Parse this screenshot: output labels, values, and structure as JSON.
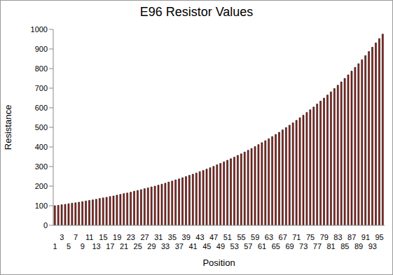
{
  "chart_data": {
    "type": "bar",
    "title": "E96 Resistor Values",
    "x_label": "Position",
    "y_label": "Resistance",
    "categories": [
      "1",
      null,
      "3",
      null,
      "5",
      null,
      "7",
      null,
      "9",
      null,
      "11",
      null,
      "13",
      null,
      "15",
      null,
      "17",
      null,
      "19",
      null,
      "21",
      null,
      "23",
      null,
      "25",
      null,
      "27",
      null,
      "29",
      null,
      "31",
      null,
      "33",
      null,
      "35",
      null,
      "37",
      null,
      "39",
      null,
      "41",
      null,
      "43",
      null,
      "45",
      null,
      "47",
      null,
      "49",
      null,
      "51",
      null,
      "53",
      null,
      "55",
      null,
      "57",
      null,
      "59",
      null,
      "61",
      null,
      "63",
      null,
      "65",
      null,
      "67",
      null,
      "69",
      null,
      "71",
      null,
      "73",
      null,
      "75",
      null,
      "77",
      null,
      "79",
      null,
      "81",
      null,
      "83",
      null,
      "85",
      null,
      "87",
      null,
      "89",
      null,
      "91",
      null,
      "93",
      null,
      "95",
      null
    ],
    "values": [
      100,
      102,
      105,
      107,
      110,
      113,
      115,
      118,
      121,
      124,
      127,
      130,
      133,
      137,
      140,
      143,
      147,
      150,
      154,
      158,
      162,
      165,
      169,
      174,
      178,
      182,
      187,
      191,
      196,
      200,
      205,
      210,
      215,
      221,
      226,
      232,
      237,
      243,
      249,
      255,
      261,
      267,
      274,
      280,
      287,
      294,
      301,
      309,
      316,
      324,
      332,
      340,
      348,
      357,
      365,
      374,
      383,
      392,
      402,
      412,
      422,
      432,
      442,
      453,
      464,
      475,
      487,
      499,
      511,
      523,
      536,
      549,
      562,
      576,
      590,
      604,
      619,
      634,
      649,
      665,
      681,
      698,
      715,
      732,
      750,
      768,
      787,
      806,
      825,
      845,
      866,
      887,
      909,
      931,
      953,
      976
    ],
    "color": "#a3241c",
    "ylim": [
      0,
      1000
    ],
    "yticks": [
      0,
      100,
      200,
      300,
      400,
      500,
      600,
      700,
      800,
      900,
      1000
    ],
    "grid": false
  }
}
